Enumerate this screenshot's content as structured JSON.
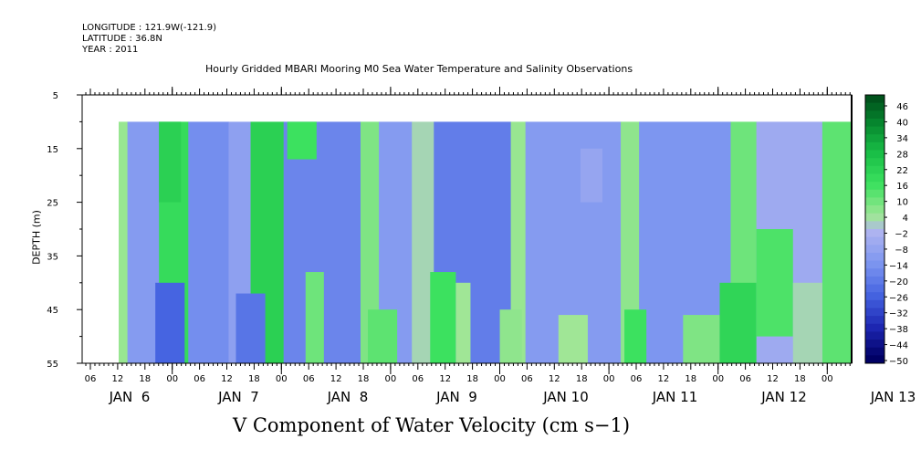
{
  "header": {
    "longitude": "LONGITUDE : 121.9W(-121.9)",
    "latitude": "LATITUDE : 36.8N",
    "year": "YEAR : 2011"
  },
  "chart_data": {
    "type": "heatmap",
    "title": "Hourly Gridded MBARI Mooring M0 Sea Water Temperature and Salinity Observations",
    "xlabel": "V Component of Water Velocity (cm s−1)",
    "ylabel": "DEPTH (m)",
    "y_range": [
      5,
      55
    ],
    "y_ticks": [
      "5",
      "15",
      "25",
      "35",
      "45",
      "55"
    ],
    "data_depth_range": [
      10,
      55
    ],
    "x_hour_labels": [
      "06",
      "12",
      "18",
      "00",
      "06",
      "12",
      "18",
      "00",
      "06",
      "12",
      "18",
      "00",
      "06",
      "12",
      "18",
      "00",
      "06",
      "12",
      "18",
      "00",
      "06",
      "12",
      "18",
      "00",
      "06",
      "12",
      "18",
      "00"
    ],
    "x_day_labels": [
      "JAN  6",
      "JAN  7",
      "JAN  8",
      "JAN  9",
      "JAN 10",
      "JAN 11",
      "JAN 12",
      "JAN 13"
    ],
    "colorbar": {
      "labels": [
        "46",
        "40",
        "34",
        "28",
        "22",
        "16",
        "10",
        "4",
        "−2",
        "−8",
        "−14",
        "−20",
        "−26",
        "−32",
        "−38",
        "−44",
        "−50"
      ],
      "min": -50,
      "max": 50,
      "step": 3
    },
    "bands": [
      {
        "x0": 0,
        "x1": 0.012,
        "value": 5
      },
      {
        "x0": 0.012,
        "x1": 0.055,
        "value": -12
      },
      {
        "x0": 0.055,
        "x1": 0.095,
        "value": 18
      },
      {
        "x0": 0.095,
        "x1": 0.15,
        "value": -16
      },
      {
        "x0": 0.15,
        "x1": 0.18,
        "value": -10
      },
      {
        "x0": 0.18,
        "x1": 0.225,
        "value": 22
      },
      {
        "x0": 0.225,
        "x1": 0.33,
        "value": -18
      },
      {
        "x0": 0.33,
        "x1": 0.355,
        "value": 8
      },
      {
        "x0": 0.355,
        "x1": 0.4,
        "value": -12
      },
      {
        "x0": 0.4,
        "x1": 0.43,
        "value": 2
      },
      {
        "x0": 0.43,
        "x1": 0.535,
        "value": -20
      },
      {
        "x0": 0.535,
        "x1": 0.555,
        "value": 5
      },
      {
        "x0": 0.555,
        "x1": 0.685,
        "value": -12
      },
      {
        "x0": 0.685,
        "x1": 0.71,
        "value": 6
      },
      {
        "x0": 0.71,
        "x1": 0.835,
        "value": -14
      },
      {
        "x0": 0.835,
        "x1": 0.87,
        "value": 10
      },
      {
        "x0": 0.87,
        "x1": 0.96,
        "value": -6
      },
      {
        "x0": 0.96,
        "x1": 1.0,
        "value": 12
      }
    ],
    "patches": [
      {
        "x0": 0.055,
        "x1": 0.085,
        "y0": 10,
        "y1": 25,
        "value": 22
      },
      {
        "x0": 0.05,
        "x1": 0.09,
        "y0": 40,
        "y1": 55,
        "value": -26
      },
      {
        "x0": 0.16,
        "x1": 0.2,
        "y0": 42,
        "y1": 55,
        "value": -22
      },
      {
        "x0": 0.23,
        "x1": 0.27,
        "y0": 10,
        "y1": 17,
        "value": 16
      },
      {
        "x0": 0.255,
        "x1": 0.28,
        "y0": 38,
        "y1": 55,
        "value": 10
      },
      {
        "x0": 0.34,
        "x1": 0.38,
        "y0": 45,
        "y1": 55,
        "value": 12
      },
      {
        "x0": 0.425,
        "x1": 0.46,
        "y0": 38,
        "y1": 55,
        "value": 16
      },
      {
        "x0": 0.46,
        "x1": 0.48,
        "y0": 40,
        "y1": 55,
        "value": 4
      },
      {
        "x0": 0.52,
        "x1": 0.55,
        "y0": 45,
        "y1": 55,
        "value": 6
      },
      {
        "x0": 0.6,
        "x1": 0.64,
        "y0": 46,
        "y1": 55,
        "value": 4
      },
      {
        "x0": 0.69,
        "x1": 0.72,
        "y0": 45,
        "y1": 55,
        "value": 16
      },
      {
        "x0": 0.77,
        "x1": 0.82,
        "y0": 46,
        "y1": 55,
        "value": 8
      },
      {
        "x0": 0.82,
        "x1": 0.87,
        "y0": 40,
        "y1": 55,
        "value": 20
      },
      {
        "x0": 0.87,
        "x1": 0.92,
        "y0": 30,
        "y1": 50,
        "value": 14
      },
      {
        "x0": 0.92,
        "x1": 0.96,
        "y0": 40,
        "y1": 55,
        "value": 2
      },
      {
        "x0": 0.63,
        "x1": 0.66,
        "y0": 15,
        "y1": 25,
        "value": -8
      }
    ]
  }
}
